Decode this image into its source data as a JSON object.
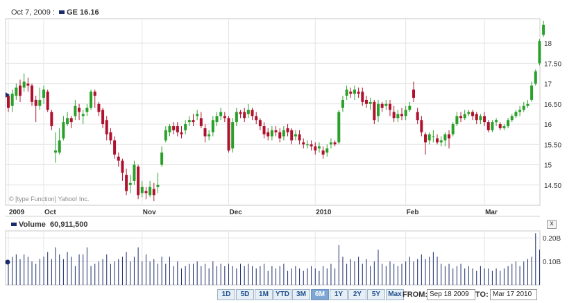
{
  "header": {
    "date": "Oct 7, 2009 :",
    "ticker": "GE 16.16"
  },
  "volume_header": {
    "label": "Volume",
    "value": "60,911,500"
  },
  "watermark": "© [type Function] Yahoo! Inc.",
  "close_glyph": "x",
  "range_buttons": [
    "1D",
    "5D",
    "1M",
    "YTD",
    "3M",
    "6M",
    "1Y",
    "2Y",
    "5Y",
    "Max"
  ],
  "range_active": "6M",
  "from_label": "FROM:",
  "from_value": "Sep 18 2009",
  "to_label": "TO:",
  "to_value": "Mar 17 2010",
  "colors": {
    "up": "#2aa02a",
    "down": "#b0112e",
    "volume": "#1a2b6b",
    "grid": "#e4e4e4",
    "axis": "#999999"
  },
  "chart_data": {
    "type": "candlestick",
    "price_axis": {
      "ticks": [
        "18",
        "17.50",
        "17",
        "16.50",
        "16",
        "15.50",
        "15",
        "14.50"
      ],
      "ylim": [
        14.0,
        18.6
      ]
    },
    "volume_axis": {
      "ticks": [
        "0.20B",
        "0.10B"
      ],
      "ylim": [
        0,
        0.23
      ]
    },
    "x_labels": [
      "2009",
      "Oct",
      "Nov",
      "Dec",
      "2010",
      "Feb",
      "Mar"
    ],
    "grid": true,
    "candles": [
      [
        16.7,
        16.4,
        16.75,
        16.3
      ],
      [
        16.45,
        16.75,
        16.85,
        16.3
      ],
      [
        16.7,
        16.9,
        17.0,
        16.6
      ],
      [
        16.95,
        16.7,
        17.1,
        16.55
      ],
      [
        16.9,
        17.05,
        17.25,
        16.8
      ],
      [
        17.0,
        16.95,
        17.15,
        16.8
      ],
      [
        16.95,
        16.55,
        17.0,
        16.45
      ],
      [
        16.6,
        16.45,
        16.7,
        16.05
      ],
      [
        16.45,
        16.6,
        16.9,
        16.35
      ],
      [
        16.65,
        16.85,
        16.95,
        16.5
      ],
      [
        16.8,
        16.35,
        16.85,
        16.3
      ],
      [
        16.3,
        15.95,
        16.35,
        15.85
      ],
      [
        15.3,
        15.35,
        15.8,
        15.05
      ],
      [
        15.3,
        15.6,
        15.9,
        15.25
      ],
      [
        15.65,
        16.05,
        16.2,
        15.6
      ],
      [
        16.0,
        16.15,
        16.3,
        15.95
      ],
      [
        16.15,
        16.05,
        16.2,
        15.9
      ],
      [
        16.2,
        16.45,
        16.6,
        16.1
      ],
      [
        16.4,
        16.3,
        16.5,
        16.1
      ],
      [
        16.2,
        16.25,
        16.35,
        16.0
      ],
      [
        16.3,
        16.4,
        16.5,
        16.2
      ],
      [
        16.4,
        16.8,
        16.85,
        16.35
      ],
      [
        16.8,
        16.7,
        16.85,
        16.4
      ],
      [
        16.5,
        16.3,
        16.55,
        16.2
      ],
      [
        16.35,
        16.0,
        16.4,
        15.9
      ],
      [
        16.1,
        15.75,
        16.2,
        15.6
      ],
      [
        15.8,
        15.6,
        15.9,
        15.5
      ],
      [
        15.6,
        15.25,
        15.7,
        15.15
      ],
      [
        15.2,
        15.1,
        15.3,
        14.95
      ],
      [
        15.1,
        14.8,
        15.15,
        14.6
      ],
      [
        14.75,
        14.35,
        14.9,
        14.25
      ],
      [
        14.5,
        14.55,
        14.75,
        14.3
      ],
      [
        14.6,
        15.0,
        15.1,
        14.5
      ],
      [
        14.95,
        14.25,
        15.0,
        14.15
      ],
      [
        14.3,
        14.45,
        14.6,
        14.2
      ],
      [
        14.35,
        14.3,
        14.45,
        14.15
      ],
      [
        14.25,
        14.45,
        14.6,
        14.2
      ],
      [
        14.4,
        14.25,
        14.55,
        14.1
      ],
      [
        14.45,
        14.5,
        14.8,
        14.3
      ],
      [
        15.0,
        15.3,
        15.45,
        14.95
      ],
      [
        15.6,
        15.85,
        15.95,
        15.55
      ],
      [
        15.8,
        15.95,
        16.0,
        15.7
      ],
      [
        15.95,
        15.85,
        16.05,
        15.75
      ],
      [
        15.95,
        15.8,
        16.05,
        15.7
      ],
      [
        15.8,
        15.75,
        15.95,
        15.65
      ],
      [
        15.85,
        16.0,
        16.1,
        15.75
      ],
      [
        16.05,
        16.1,
        16.2,
        15.95
      ],
      [
        16.1,
        16.05,
        16.25,
        15.95
      ],
      [
        16.2,
        16.25,
        16.35,
        16.1
      ],
      [
        16.15,
        15.95,
        16.3,
        15.9
      ],
      [
        15.9,
        15.7,
        16.0,
        15.55
      ],
      [
        15.7,
        15.75,
        15.85,
        15.6
      ],
      [
        15.8,
        16.1,
        16.2,
        15.7
      ],
      [
        16.05,
        16.2,
        16.3,
        15.95
      ],
      [
        16.2,
        16.3,
        16.4,
        16.1
      ],
      [
        16.2,
        16.15,
        16.3,
        16.05
      ],
      [
        16.15,
        15.35,
        16.2,
        15.3
      ],
      [
        15.4,
        16.05,
        16.15,
        15.3
      ],
      [
        16.05,
        16.3,
        16.4,
        15.95
      ],
      [
        16.3,
        16.25,
        16.35,
        16.15
      ],
      [
        16.3,
        16.15,
        16.4,
        16.05
      ],
      [
        16.25,
        16.35,
        16.5,
        16.15
      ],
      [
        16.35,
        16.2,
        16.4,
        16.1
      ],
      [
        16.2,
        16.1,
        16.3,
        16.0
      ],
      [
        16.1,
        15.95,
        16.15,
        15.85
      ],
      [
        15.95,
        15.75,
        16.05,
        15.65
      ],
      [
        15.8,
        15.7,
        15.9,
        15.6
      ],
      [
        15.7,
        15.85,
        15.95,
        15.6
      ],
      [
        15.85,
        15.8,
        15.95,
        15.7
      ],
      [
        15.8,
        15.65,
        15.9,
        15.55
      ],
      [
        15.7,
        15.85,
        15.95,
        15.6
      ],
      [
        15.9,
        15.8,
        16.0,
        15.7
      ],
      [
        15.85,
        15.6,
        15.9,
        15.5
      ],
      [
        15.7,
        15.75,
        15.85,
        15.6
      ],
      [
        15.75,
        15.6,
        15.85,
        15.5
      ],
      [
        15.55,
        15.5,
        15.65,
        15.4
      ],
      [
        15.5,
        15.5,
        15.6,
        15.4
      ],
      [
        15.5,
        15.45,
        15.6,
        15.35
      ],
      [
        15.45,
        15.35,
        15.55,
        15.25
      ],
      [
        15.4,
        15.45,
        15.55,
        15.3
      ],
      [
        15.35,
        15.25,
        15.45,
        15.15
      ],
      [
        15.3,
        15.4,
        15.5,
        15.2
      ],
      [
        15.5,
        15.55,
        15.65,
        15.4
      ],
      [
        15.55,
        15.5,
        15.6,
        15.45
      ],
      [
        15.55,
        16.3,
        16.35,
        15.5
      ],
      [
        16.4,
        16.6,
        16.7,
        16.3
      ],
      [
        16.7,
        16.85,
        16.95,
        16.6
      ],
      [
        16.8,
        16.75,
        16.9,
        16.65
      ],
      [
        16.75,
        16.85,
        16.95,
        16.6
      ],
      [
        16.8,
        16.75,
        16.9,
        16.65
      ],
      [
        16.8,
        16.55,
        16.9,
        16.45
      ],
      [
        16.6,
        16.5,
        16.7,
        16.4
      ],
      [
        16.5,
        16.55,
        16.65,
        16.35
      ],
      [
        16.55,
        16.1,
        16.6,
        16.0
      ],
      [
        16.2,
        16.5,
        16.6,
        16.05
      ],
      [
        16.5,
        16.4,
        16.55,
        16.3
      ],
      [
        16.45,
        16.5,
        16.6,
        16.35
      ],
      [
        16.5,
        16.35,
        16.6,
        16.2
      ],
      [
        16.3,
        16.15,
        16.45,
        16.05
      ],
      [
        16.15,
        16.25,
        16.35,
        16.05
      ],
      [
        16.25,
        16.2,
        16.4,
        16.1
      ],
      [
        16.2,
        16.35,
        16.45,
        16.1
      ],
      [
        16.35,
        16.45,
        16.55,
        16.3
      ],
      [
        16.85,
        16.65,
        17.05,
        16.55
      ],
      [
        16.3,
        16.1,
        16.4,
        16.0
      ],
      [
        16.1,
        15.8,
        16.2,
        15.7
      ],
      [
        15.75,
        15.55,
        15.8,
        15.25
      ],
      [
        15.6,
        15.75,
        15.8,
        15.5
      ],
      [
        15.7,
        15.7,
        15.85,
        15.55
      ],
      [
        15.65,
        15.55,
        15.75,
        15.5
      ],
      [
        15.55,
        15.6,
        15.7,
        15.45
      ],
      [
        15.6,
        15.75,
        15.8,
        15.45
      ],
      [
        15.75,
        15.65,
        15.85,
        15.4
      ],
      [
        15.75,
        16.0,
        16.05,
        15.7
      ],
      [
        16.0,
        16.2,
        16.3,
        15.95
      ],
      [
        16.2,
        16.15,
        16.3,
        16.05
      ],
      [
        16.15,
        16.25,
        16.35,
        16.1
      ],
      [
        16.25,
        16.3,
        16.35,
        16.2
      ],
      [
        16.3,
        16.2,
        16.35,
        16.1
      ],
      [
        16.25,
        16.1,
        16.3,
        16.0
      ],
      [
        16.1,
        16.2,
        16.25,
        16.0
      ],
      [
        16.2,
        16.05,
        16.3,
        15.95
      ],
      [
        16.05,
        15.85,
        16.1,
        15.8
      ],
      [
        15.85,
        16.05,
        16.1,
        15.8
      ],
      [
        16.05,
        16.1,
        16.15,
        15.95
      ],
      [
        16.0,
        15.9,
        16.05,
        15.85
      ],
      [
        15.9,
        15.95,
        16.0,
        15.85
      ],
      [
        15.95,
        16.1,
        16.15,
        15.9
      ],
      [
        16.1,
        16.2,
        16.25,
        16.05
      ],
      [
        16.2,
        16.3,
        16.35,
        16.15
      ],
      [
        16.3,
        16.35,
        16.45,
        16.2
      ],
      [
        16.35,
        16.45,
        16.55,
        16.3
      ],
      [
        16.45,
        16.5,
        16.6,
        16.4
      ],
      [
        16.6,
        16.95,
        17.05,
        16.55
      ],
      [
        17.0,
        17.3,
        17.35,
        16.95
      ],
      [
        17.5,
        18.05,
        18.1,
        17.45
      ],
      [
        18.2,
        18.45,
        18.55,
        18.15
      ]
    ],
    "volumes": [
      0.1,
      0.12,
      0.13,
      0.11,
      0.13,
      0.12,
      0.1,
      0.09,
      0.11,
      0.12,
      0.14,
      0.11,
      0.16,
      0.13,
      0.11,
      0.14,
      0.12,
      0.08,
      0.13,
      0.13,
      0.16,
      0.08,
      0.09,
      0.1,
      0.11,
      0.13,
      0.09,
      0.1,
      0.11,
      0.12,
      0.14,
      0.1,
      0.12,
      0.16,
      0.1,
      0.13,
      0.1,
      0.11,
      0.09,
      0.12,
      0.09,
      0.12,
      0.08,
      0.1,
      0.07,
      0.08,
      0.09,
      0.09,
      0.1,
      0.08,
      0.09,
      0.07,
      0.1,
      0.08,
      0.09,
      0.08,
      0.09,
      0.08,
      0.07,
      0.09,
      0.08,
      0.09,
      0.08,
      0.07,
      0.08,
      0.09,
      0.06,
      0.08,
      0.07,
      0.08,
      0.09,
      0.06,
      0.07,
      0.08,
      0.07,
      0.06,
      0.07,
      0.08,
      0.07,
      0.06,
      0.08,
      0.07,
      0.09,
      0.07,
      0.17,
      0.12,
      0.09,
      0.11,
      0.1,
      0.12,
      0.09,
      0.11,
      0.08,
      0.1,
      0.15,
      0.09,
      0.08,
      0.1,
      0.09,
      0.08,
      0.09,
      0.1,
      0.12,
      0.1,
      0.11,
      0.13,
      0.11,
      0.12,
      0.14,
      0.12,
      0.09,
      0.08,
      0.09,
      0.07,
      0.08,
      0.09,
      0.07,
      0.08,
      0.07,
      0.06,
      0.08,
      0.07,
      0.07,
      0.06,
      0.07,
      0.06,
      0.07,
      0.08,
      0.09,
      0.1,
      0.08,
      0.1,
      0.11,
      0.12,
      0.22,
      0.15
    ]
  }
}
